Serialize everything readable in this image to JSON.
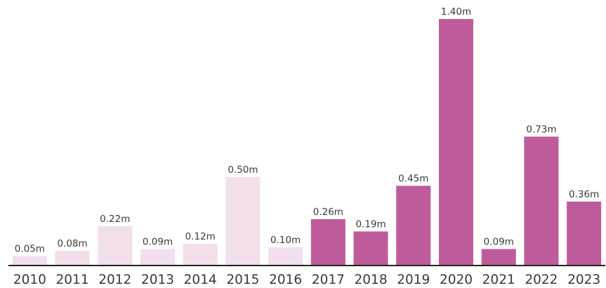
{
  "chart_data": {
    "type": "bar",
    "categories": [
      "2010",
      "2011",
      "2012",
      "2013",
      "2014",
      "2015",
      "2016",
      "2017",
      "2018",
      "2019",
      "2020",
      "2021",
      "2022",
      "2023"
    ],
    "values": [
      0.05,
      0.08,
      0.22,
      0.09,
      0.12,
      0.5,
      0.1,
      0.26,
      0.19,
      0.45,
      1.4,
      0.09,
      0.73,
      0.36
    ],
    "data_labels": [
      "0.05m",
      "0.08m",
      "0.22m",
      "0.09m",
      "0.12m",
      "0.50m",
      "0.10m",
      "0.26m",
      "0.19m",
      "0.45m",
      "1.40m",
      "0.09m",
      "0.73m",
      "0.36m"
    ],
    "highlighted": [
      false,
      false,
      false,
      false,
      false,
      false,
      false,
      true,
      true,
      true,
      true,
      true,
      true,
      true
    ],
    "colors": {
      "highlight": "#be5c9b",
      "muted": "#f1dfeb",
      "axis": "#222222",
      "text": "#3a3a3a"
    },
    "ylim": [
      0,
      1.4
    ],
    "grid": false,
    "legend": "none",
    "title": "",
    "xlabel": "",
    "ylabel": ""
  }
}
